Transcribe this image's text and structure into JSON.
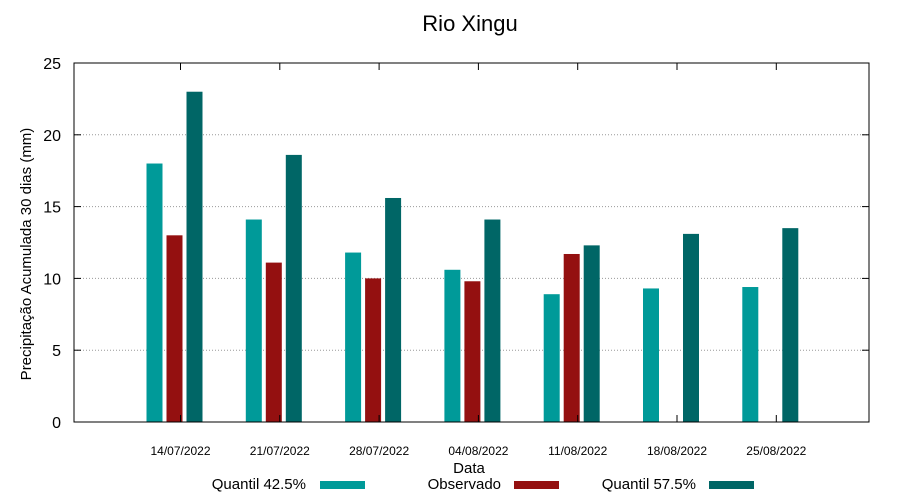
{
  "chart_data": {
    "type": "bar",
    "title": "Rio Xingu",
    "xlabel": "Data",
    "ylabel": "Precipitação Acumulada 30 dias (mm)",
    "ylim": [
      0,
      25
    ],
    "yticks": [
      0,
      5,
      10,
      15,
      20,
      25
    ],
    "grid": true,
    "legend_position": "bottom",
    "categories": [
      "14/07/2022",
      "21/07/2022",
      "28/07/2022",
      "04/08/2022",
      "11/08/2022",
      "18/08/2022",
      "25/08/2022"
    ],
    "series": [
      {
        "name": "Quantil 42.5%",
        "color": "#009a99",
        "values": [
          18.0,
          14.1,
          11.8,
          10.6,
          8.9,
          9.3,
          9.4
        ]
      },
      {
        "name": "Observado",
        "color": "#941010",
        "values": [
          13.0,
          11.1,
          10.0,
          9.8,
          11.7,
          null,
          null
        ]
      },
      {
        "name": "Quantil 57.5%",
        "color": "#006666",
        "values": [
          23.0,
          18.6,
          15.6,
          14.1,
          12.3,
          13.1,
          13.5
        ]
      }
    ]
  }
}
